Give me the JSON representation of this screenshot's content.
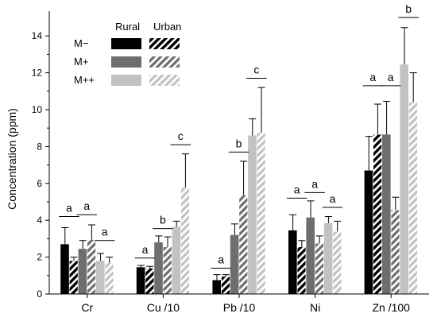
{
  "chart_data": {
    "type": "bar",
    "ylabel": "Concentration (ppm)",
    "ylim": [
      0,
      15
    ],
    "yticks": [
      0,
      2,
      4,
      6,
      8,
      10,
      12,
      14
    ],
    "categories": [
      "Cr",
      "Cu /10",
      "Pb /10",
      "Ni",
      "Zn /100"
    ],
    "legend": {
      "columns": [
        "Rural",
        "Urban"
      ],
      "rows": [
        "M−",
        "M+",
        "M++"
      ]
    },
    "series": [
      {
        "name": "M− Rural",
        "level": 0,
        "pattern": "solid",
        "color": "#000000",
        "values": [
          2.7,
          1.45,
          0.75,
          3.45,
          6.7
        ],
        "errors": [
          0.9,
          0.1,
          0.3,
          0.85,
          1.85
        ]
      },
      {
        "name": "M− Urban",
        "level": 0,
        "pattern": "hatched",
        "color": "#000000",
        "values": [
          1.8,
          1.4,
          0.95,
          2.55,
          8.65
        ],
        "errors": [
          0.2,
          0.1,
          0.1,
          0.35,
          1.65
        ]
      },
      {
        "name": "M+ Rural",
        "level": 1,
        "pattern": "solid",
        "color": "#6e6e6e",
        "values": [
          2.45,
          2.8,
          3.2,
          4.15,
          8.65
        ],
        "errors": [
          0.45,
          0.35,
          0.6,
          0.9,
          1.8
        ]
      },
      {
        "name": "M+ Urban",
        "level": 1,
        "pattern": "hatched",
        "color": "#6e6e6e",
        "values": [
          2.95,
          2.55,
          5.35,
          2.75,
          4.55
        ],
        "errors": [
          0.8,
          0.55,
          1.85,
          0.4,
          0.7
        ]
      },
      {
        "name": "M++ Rural",
        "level": 2,
        "pattern": "solid",
        "color": "#c2c2c2",
        "values": [
          1.8,
          3.65,
          8.6,
          3.85,
          12.45
        ],
        "errors": [
          0.4,
          0.3,
          0.9,
          0.35,
          2.0
        ]
      },
      {
        "name": "M++ Urban",
        "level": 2,
        "pattern": "hatched",
        "color": "#c2c2c2",
        "values": [
          1.7,
          5.8,
          8.75,
          3.4,
          10.4
        ],
        "errors": [
          0.3,
          1.8,
          2.45,
          0.55,
          1.6
        ]
      }
    ],
    "significance": [
      {
        "category": 0,
        "pairs": [
          {
            "level": 0,
            "letter": "a",
            "y": 4.2
          },
          {
            "level": 1,
            "letter": "a",
            "y": 4.3
          },
          {
            "level": 2,
            "letter": "a",
            "y": 2.9
          }
        ]
      },
      {
        "category": 1,
        "pairs": [
          {
            "level": 0,
            "letter": "a",
            "y": 1.95
          },
          {
            "level": 1,
            "letter": "b",
            "y": 3.55
          },
          {
            "level": 2,
            "letter": "c",
            "y": 8.1
          }
        ]
      },
      {
        "category": 2,
        "pairs": [
          {
            "level": 0,
            "letter": "a",
            "y": 1.4
          },
          {
            "level": 1,
            "letter": "b",
            "y": 7.7
          },
          {
            "level": 2,
            "letter": "c",
            "y": 11.7
          }
        ]
      },
      {
        "category": 3,
        "pairs": [
          {
            "level": 0,
            "letter": "a",
            "y": 5.2
          },
          {
            "level": 1,
            "letter": "a",
            "y": 5.5
          },
          {
            "level": 2,
            "letter": "a",
            "y": 4.7
          }
        ]
      },
      {
        "category": 4,
        "pairs": [
          {
            "level": 0,
            "letter": "a",
            "y": 11.3
          },
          {
            "level": 1,
            "letter": "a",
            "y": 11.3
          },
          {
            "level": 2,
            "letter": "b",
            "y": 15.0
          }
        ]
      }
    ]
  }
}
